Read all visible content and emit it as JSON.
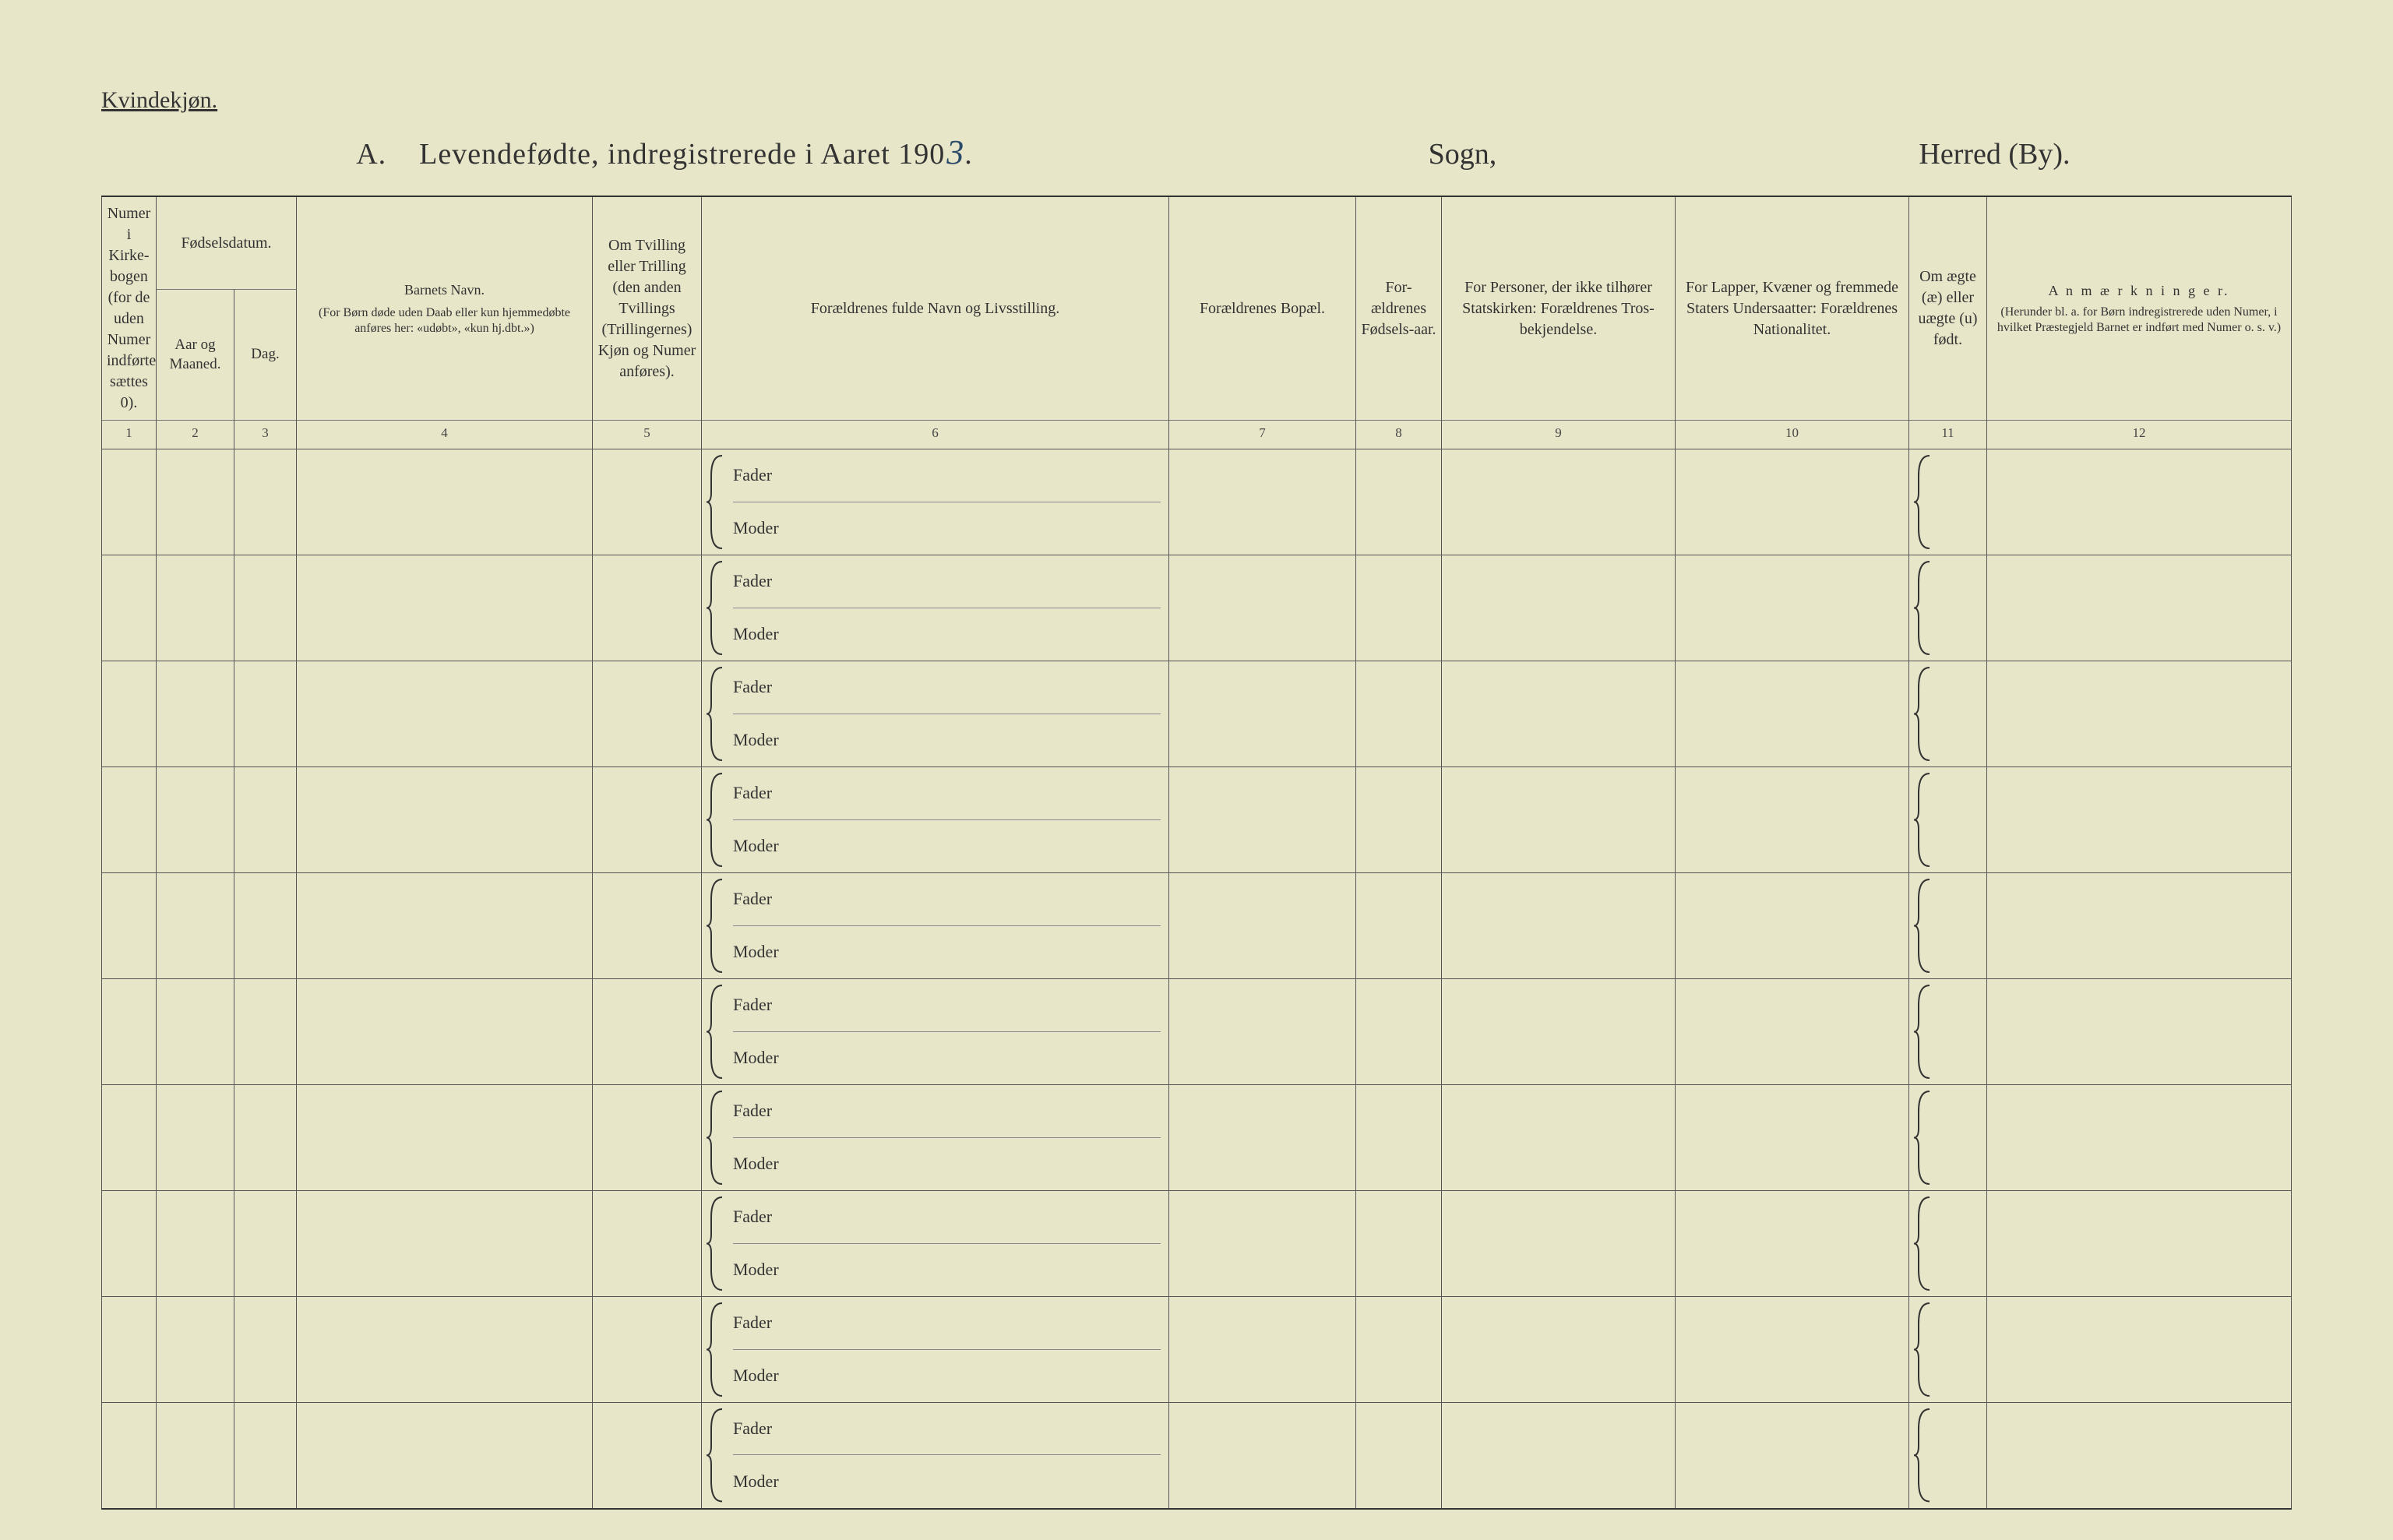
{
  "page": {
    "background_color": "#e8e6c8",
    "text_color": "#3a3a3a",
    "rule_color": "#555555",
    "heavy_rule_color": "#333333"
  },
  "corner_label": "Kvindekjøn.",
  "title": {
    "prefix": "A.",
    "text": "Levendefødte, indregistrerede i Aaret 190",
    "year_handwritten": "3",
    "trailing_dot": ".",
    "sogn_label": "Sogn,",
    "herred_label": "Herred (By)."
  },
  "columns": {
    "c1": {
      "num": "1",
      "header": "Numer i Kirke-bogen (for de uden Numer indførte sættes 0)."
    },
    "c2_group": "Fødselsdatum.",
    "c2": {
      "num": "2",
      "header": "Aar og Maaned."
    },
    "c3": {
      "num": "3",
      "header": "Dag."
    },
    "c4": {
      "num": "4",
      "header_main": "Barnets Navn.",
      "header_sub": "(For Børn døde uden Daab eller kun hjemmedøbte anføres her: «udøbt», «kun hj.dbt.»)"
    },
    "c5": {
      "num": "5",
      "header": "Om Tvilling eller Trilling (den anden Tvillings (Trillingernes) Kjøn og Numer anføres)."
    },
    "c6": {
      "num": "6",
      "header": "Forældrenes fulde Navn og Livsstilling.",
      "fader": "Fader",
      "moder": "Moder"
    },
    "c7": {
      "num": "7",
      "header": "Forældrenes Bopæl."
    },
    "c8": {
      "num": "8",
      "header": "For-ældrenes Fødsels-aar."
    },
    "c9": {
      "num": "9",
      "header": "For Personer, der ikke tilhører Statskirken: Forældrenes Tros-bekjendelse."
    },
    "c10": {
      "num": "10",
      "header": "For Lapper, Kvæner og fremmede Staters Undersaatter: Forældrenes Nationalitet."
    },
    "c11": {
      "num": "11",
      "header": "Om ægte (æ) eller uægte (u) født."
    },
    "c12": {
      "num": "12",
      "header_main": "A n m æ r k n i n g e r.",
      "header_sub": "(Herunder bl. a. for Børn indregistrerede uden Numer, i hvilket Præstegjeld Barnet er indført med Numer o. s. v.)"
    }
  },
  "rows_count": 10
}
